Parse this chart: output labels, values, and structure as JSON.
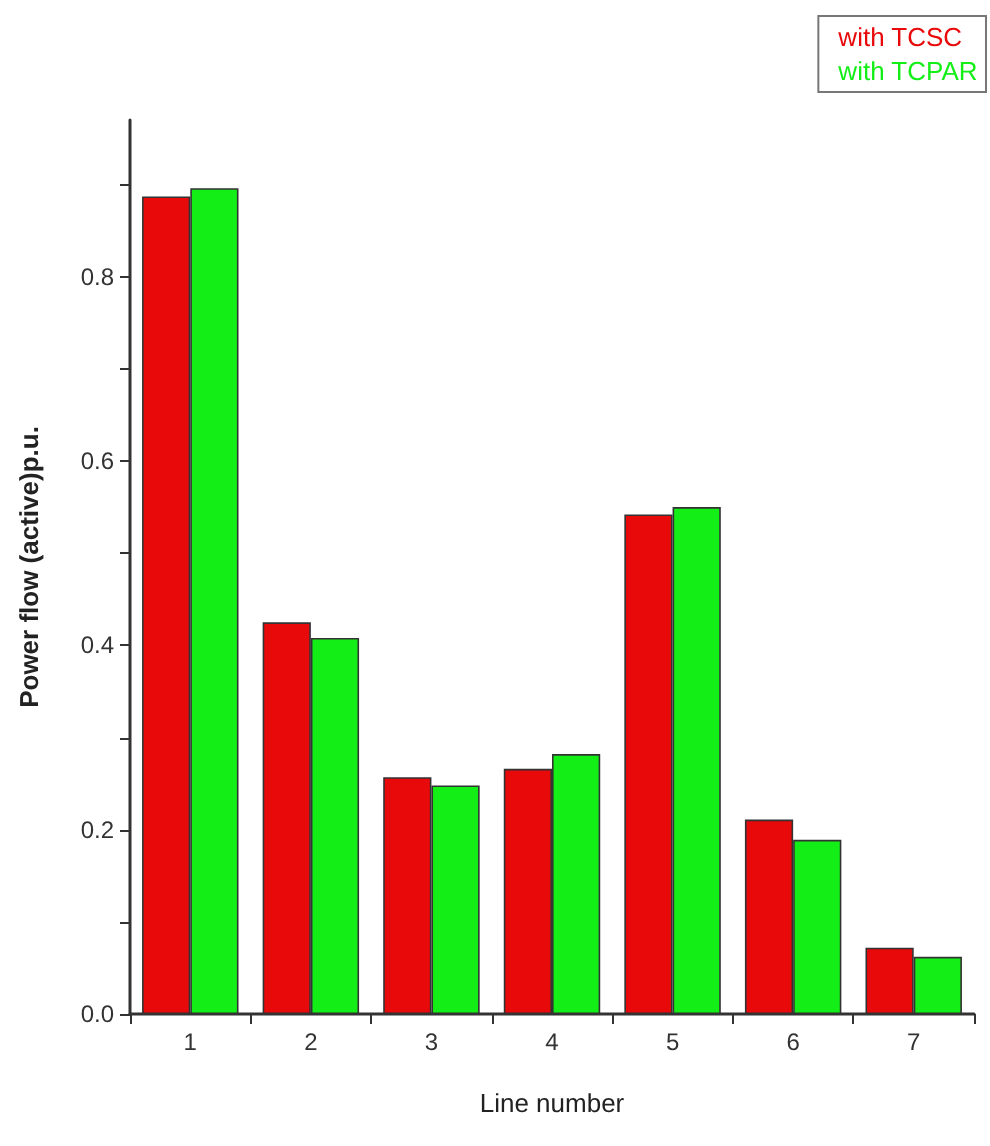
{
  "chart_data": {
    "type": "bar",
    "xlabel": "Line number",
    "ylabel": "Power flow (active)p.u.",
    "categories": [
      "1",
      "2",
      "3",
      "4",
      "5",
      "6",
      "7"
    ],
    "series": [
      {
        "name": "with TCSC",
        "color": "#e8090b",
        "values": [
          0.887,
          0.425,
          0.257,
          0.266,
          0.542,
          0.211,
          0.072
        ]
      },
      {
        "name": "with TCPAR",
        "color": "#14ee17",
        "values": [
          0.896,
          0.408,
          0.248,
          0.282,
          0.55,
          0.189,
          0.062
        ]
      }
    ],
    "ylim": [
      0,
      0.97
    ],
    "yticks": [
      {
        "value": 0,
        "label": "0.0"
      },
      {
        "value": 0.1,
        "label": null
      },
      0.2,
      {
        "value": 0.3,
        "label": null
      },
      0.4,
      {
        "value": 0.5,
        "label": null
      },
      0.6,
      {
        "value": 0.7,
        "label": null
      },
      0.8,
      {
        "value": 0.9,
        "label": null
      }
    ],
    "grid": false,
    "legend": "top right"
  }
}
